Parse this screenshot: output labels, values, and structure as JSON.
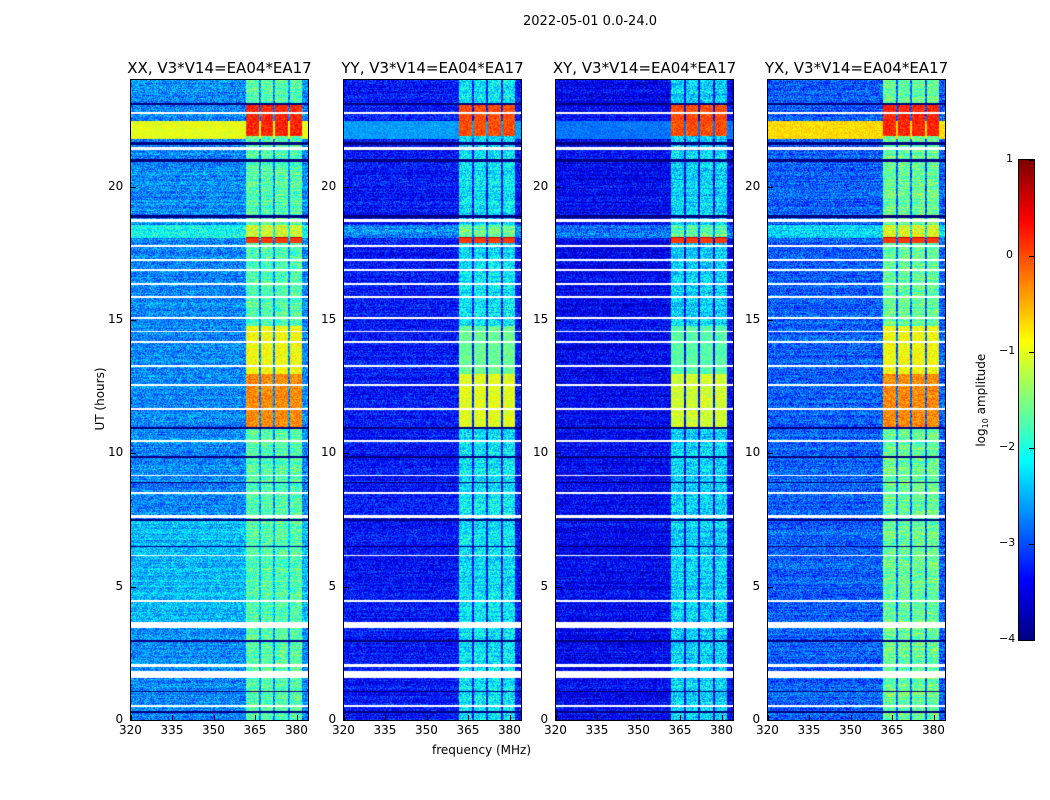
{
  "chart_data": {
    "type": "heatmap",
    "title": "2022-05-01 0.0-24.0",
    "xlabel": "frequency (MHz)",
    "ylabel": "UT (hours)",
    "xlim": [
      320,
      384
    ],
    "ylim": [
      0,
      24
    ],
    "xticks": [
      "320",
      "335",
      "350",
      "365",
      "380"
    ],
    "xtick_values": [
      320,
      335,
      350,
      365,
      380
    ],
    "yticks": [
      "0",
      "5",
      "10",
      "15",
      "20"
    ],
    "ytick_values": [
      0,
      5,
      10,
      15,
      20
    ],
    "colorbar": {
      "label_main": "log",
      "label_sub": "10",
      "label_rest": " amplitude",
      "range": [
        -4,
        1
      ],
      "ticks": [
        "1",
        "0",
        "−1",
        "−2",
        "−3",
        "−4"
      ],
      "tick_values": [
        1,
        0,
        -1,
        -2,
        -3,
        -4
      ],
      "colormap": "jet"
    },
    "panels": [
      {
        "title": "XX, V3*V14=EA04*EA17",
        "background_level": -2.7,
        "band_level": -1.7,
        "rfi_level_11h": -0.3,
        "rfi_level_22h": 0.2,
        "broadband_22h": -1.0
      },
      {
        "title": "YY, V3*V14=EA04*EA17",
        "background_level": -3.3,
        "band_level": -2.2,
        "rfi_level_11h": -1.0,
        "rfi_level_22h": 0.0,
        "broadband_22h": -2.6
      },
      {
        "title": "XY, V3*V14=EA04*EA17",
        "background_level": -3.4,
        "band_level": -2.3,
        "rfi_level_11h": -1.1,
        "rfi_level_22h": 0.0,
        "broadband_22h": -2.8
      },
      {
        "title": "YX, V3*V14=EA04*EA17",
        "background_level": -2.9,
        "band_level": -1.6,
        "rfi_level_11h": -0.3,
        "rfi_level_22h": 0.2,
        "broadband_22h": -0.7
      }
    ],
    "rfi_subbands_mhz": [
      [
        361.5,
        366
      ],
      [
        366.8,
        371.3
      ],
      [
        372,
        376.5
      ],
      [
        377.2,
        381.5
      ]
    ],
    "flagged_hours": [
      [
        0.5,
        0.6
      ],
      [
        1.6,
        1.85
      ],
      [
        2.02,
        2.1
      ],
      [
        3.45,
        3.7
      ],
      [
        4.45,
        4.52
      ],
      [
        6.15,
        6.22
      ],
      [
        7.6,
        7.7
      ],
      [
        8.5,
        8.58
      ],
      [
        9.15,
        9.22
      ],
      [
        10.45,
        10.52
      ],
      [
        11.65,
        11.72
      ],
      [
        12.55,
        12.62
      ],
      [
        13.25,
        13.32
      ],
      [
        14.15,
        14.22
      ],
      [
        14.55,
        14.62
      ],
      [
        15.05,
        15.12
      ],
      [
        15.85,
        15.92
      ],
      [
        16.35,
        16.42
      ],
      [
        16.85,
        16.92
      ],
      [
        17.25,
        17.32
      ],
      [
        17.75,
        17.82
      ],
      [
        18.7,
        18.8
      ],
      [
        21.4,
        21.5
      ],
      [
        22.75,
        22.82
      ]
    ],
    "zero_hours": [
      [
        0.3,
        0.36
      ],
      [
        1.05,
        1.12
      ],
      [
        2.95,
        3.02
      ],
      [
        6.5,
        6.56
      ],
      [
        7.5,
        7.56
      ],
      [
        8.9,
        8.96
      ],
      [
        9.85,
        9.92
      ],
      [
        10.95,
        11.02
      ],
      [
        18.85,
        18.95
      ],
      [
        20.95,
        21.05
      ],
      [
        21.6,
        21.7
      ],
      [
        23.1,
        23.16
      ]
    ]
  }
}
